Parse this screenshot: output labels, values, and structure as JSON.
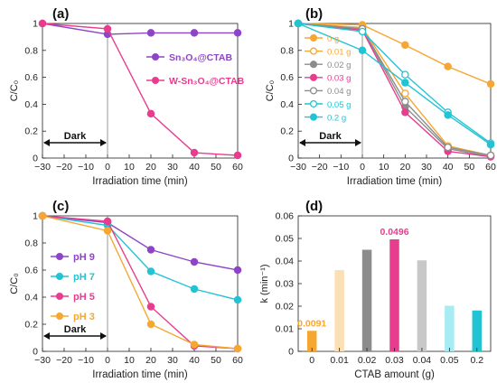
{
  "colors": {
    "purple": "#8e44c8",
    "pink": "#e83d8f",
    "orange": "#f5a732",
    "cyan": "#22c4d4",
    "gray": "#8c8c8c",
    "light_orange": "#f7cc7c",
    "dark_gray": "#8c8c8c",
    "light_gray": "#c8c8c8",
    "light_cyan": "#a8ecf3",
    "peach": "#fbe0b5"
  },
  "chart_data": [
    {
      "id": "a",
      "type": "line",
      "panel_label": "(a)",
      "xlabel": "Irradiation time (min)",
      "ylabel": "C/C₀",
      "xlim": [
        -30,
        60
      ],
      "ylim": [
        0,
        1
      ],
      "xticks": [
        -30,
        -20,
        -10,
        0,
        10,
        20,
        30,
        40,
        50,
        60
      ],
      "yticks": [
        0,
        0.2,
        0.4,
        0.6,
        0.8,
        1
      ],
      "dark_label": "Dark",
      "legend_position": "right",
      "series": [
        {
          "name": "Sn₃O₄@CTAB",
          "color": "#8e44c8",
          "filled": true,
          "x": [
            -30,
            0,
            20,
            40,
            60
          ],
          "y": [
            1.0,
            0.92,
            0.93,
            0.93,
            0.93
          ]
        },
        {
          "name": "W-Sn₃O₄@CTAB",
          "color": "#e83d8f",
          "filled": true,
          "x": [
            -30,
            0,
            20,
            40,
            60
          ],
          "y": [
            1.0,
            0.96,
            0.33,
            0.04,
            0.02
          ]
        }
      ]
    },
    {
      "id": "b",
      "type": "line",
      "panel_label": "(b)",
      "xlabel": "Irradiation time (min)",
      "ylabel": "C/C₀",
      "xlim": [
        -30,
        60
      ],
      "ylim": [
        0,
        1
      ],
      "xticks": [
        -30,
        -20,
        -10,
        0,
        10,
        20,
        30,
        40,
        50,
        60
      ],
      "yticks": [
        0,
        0.2,
        0.4,
        0.6,
        0.8,
        1
      ],
      "dark_label": "Dark",
      "legend_position": "top-left",
      "series": [
        {
          "name": "0 g",
          "color": "#f5a732",
          "filled": true,
          "x": [
            -30,
            0,
            20,
            40,
            60
          ],
          "y": [
            1.0,
            0.99,
            0.84,
            0.68,
            0.55
          ]
        },
        {
          "name": "0.01 g",
          "color": "#f5a732",
          "filled": false,
          "x": [
            -30,
            0,
            20,
            40,
            60
          ],
          "y": [
            1.0,
            0.97,
            0.48,
            0.09,
            0.02
          ]
        },
        {
          "name": "0.02 g",
          "color": "#8c8c8c",
          "filled": true,
          "x": [
            -30,
            0,
            20,
            40,
            60
          ],
          "y": [
            1.0,
            0.96,
            0.38,
            0.07,
            0.01
          ]
        },
        {
          "name": "0.03 g",
          "color": "#e83d8f",
          "filled": true,
          "x": [
            -30,
            0,
            20,
            40,
            60
          ],
          "y": [
            1.0,
            0.95,
            0.34,
            0.05,
            0.01
          ]
        },
        {
          "name": "0.04 g",
          "color": "#8c8c8c",
          "filled": false,
          "x": [
            -30,
            0,
            20,
            40,
            60
          ],
          "y": [
            1.0,
            0.96,
            0.42,
            0.08,
            0.02
          ]
        },
        {
          "name": "0.05 g",
          "color": "#22c4d4",
          "filled": false,
          "x": [
            -30,
            0,
            20,
            40,
            60
          ],
          "y": [
            1.0,
            0.94,
            0.62,
            0.34,
            0.11
          ]
        },
        {
          "name": "0.2 g",
          "color": "#22c4d4",
          "filled": true,
          "x": [
            -30,
            0,
            20,
            40,
            60
          ],
          "y": [
            1.0,
            0.8,
            0.56,
            0.32,
            0.1
          ]
        }
      ]
    },
    {
      "id": "c",
      "type": "line",
      "panel_label": "(c)",
      "xlabel": "Irradiation time (min)",
      "ylabel": "C/C₀",
      "xlim": [
        -30,
        60
      ],
      "ylim": [
        0,
        1
      ],
      "xticks": [
        -30,
        -20,
        -10,
        0,
        10,
        20,
        30,
        40,
        50,
        60
      ],
      "yticks": [
        0,
        0.2,
        0.4,
        0.6,
        0.8,
        1
      ],
      "dark_label": "Dark",
      "legend_position": "left",
      "series": [
        {
          "name": "pH 9",
          "color": "#8e44c8",
          "filled": true,
          "x": [
            -30,
            0,
            20,
            40,
            60
          ],
          "y": [
            1.0,
            0.95,
            0.75,
            0.66,
            0.6
          ]
        },
        {
          "name": "pH 7",
          "color": "#22c4d4",
          "filled": true,
          "x": [
            -30,
            0,
            20,
            40,
            60
          ],
          "y": [
            1.0,
            0.93,
            0.59,
            0.46,
            0.38
          ]
        },
        {
          "name": "pH 5",
          "color": "#e83d8f",
          "filled": true,
          "x": [
            -30,
            0,
            20,
            40,
            60
          ],
          "y": [
            1.0,
            0.96,
            0.33,
            0.04,
            0.02
          ]
        },
        {
          "name": "pH 3",
          "color": "#f5a732",
          "filled": true,
          "x": [
            -30,
            0,
            20,
            40,
            60
          ],
          "y": [
            1.0,
            0.89,
            0.2,
            0.05,
            0.02
          ]
        }
      ]
    },
    {
      "id": "d",
      "type": "bar",
      "panel_label": "(d)",
      "xlabel": "CTAB amount (g)",
      "ylabel": "k (min⁻¹)",
      "ylim": [
        0,
        0.06
      ],
      "yticks": [
        0,
        0.01,
        0.02,
        0.03,
        0.04,
        0.05,
        0.06
      ],
      "categories": [
        "0",
        "0.01",
        "0.02",
        "0.03",
        "0.04",
        "0.05",
        "0.2"
      ],
      "values": [
        0.0091,
        0.036,
        0.045,
        0.0496,
        0.0403,
        0.0202,
        0.0181
      ],
      "bar_colors": [
        "#f5a732",
        "#fbe0b5",
        "#8c8c8c",
        "#e83d8f",
        "#c8c8c8",
        "#a8ecf3",
        "#22c4d4"
      ],
      "data_labels": [
        {
          "index": 0,
          "text": "0.0091",
          "color": "#f5a732"
        },
        {
          "index": 3,
          "text": "0.0496",
          "color": "#e83d8f"
        }
      ]
    }
  ]
}
